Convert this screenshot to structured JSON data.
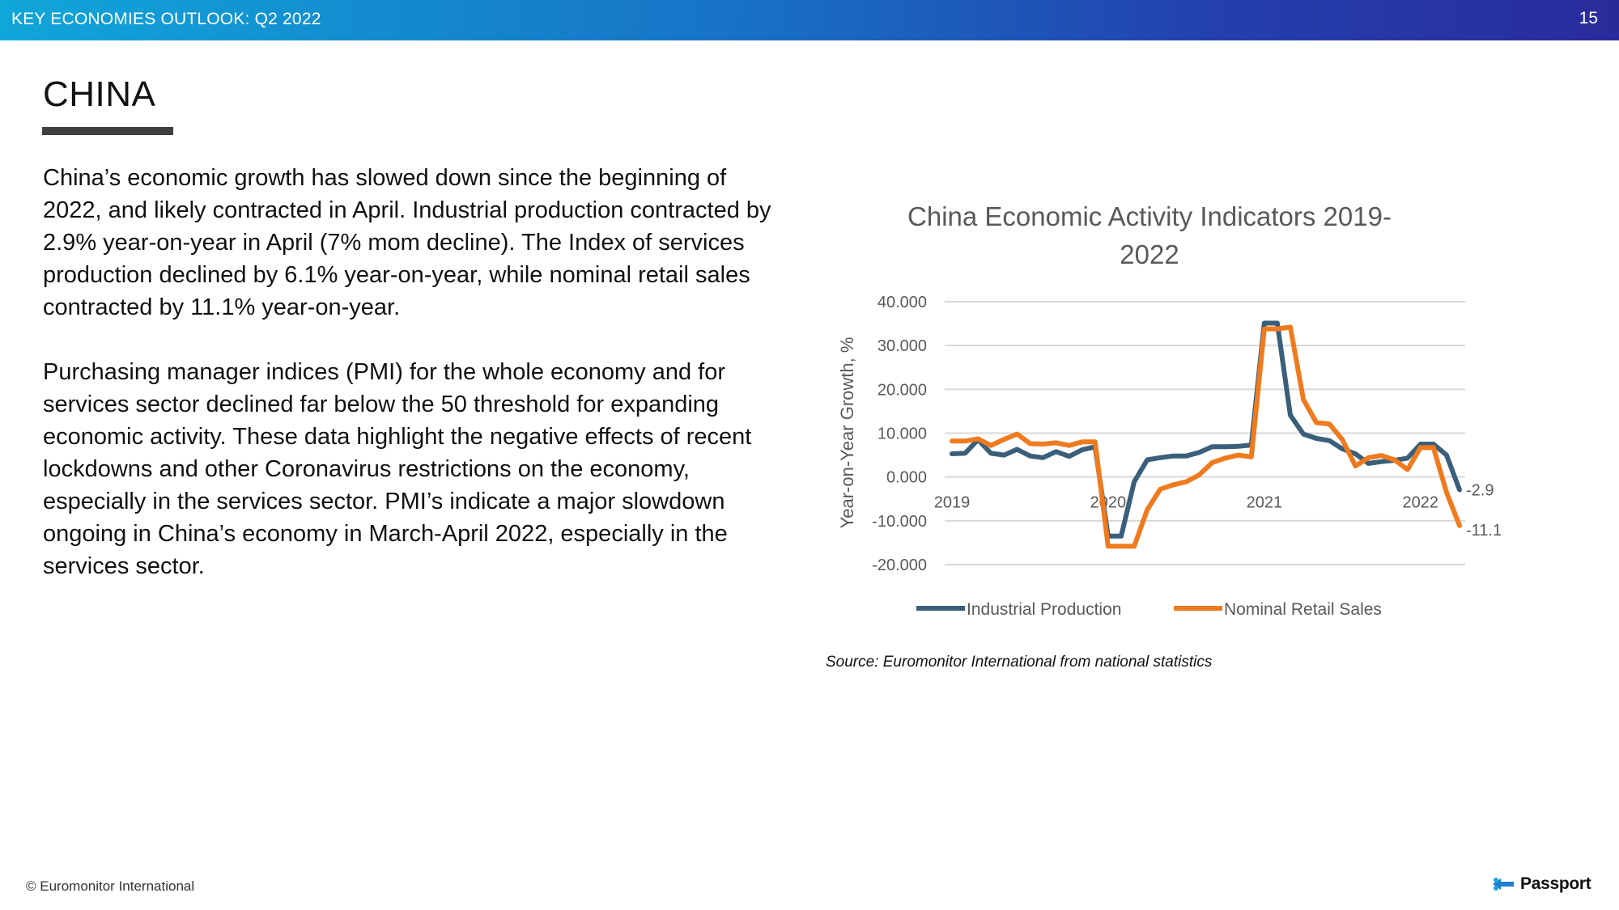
{
  "header": {
    "title": "KEY ECONOMIES OUTLOOK: Q2 2022",
    "page_number": "15"
  },
  "section": {
    "title": "CHINA"
  },
  "body": {
    "paragraphs": [
      "China’s economic  growth has slowed down since the beginning of 2022, and likely contracted in April. Industrial production contracted by 2.9% year-on-year in April (7% mom decline). The Index of services production declined by 6.1% year-on-year, while nominal retail sales contracted by 11.1% year-on-year.",
      "Purchasing manager indices (PMI) for the whole economy and for services sector declined far below the 50 threshold for expanding economic activity. These data highlight the negative effects of recent lockdowns and other Coronavirus restrictions on the economy, especially in the services sector. PMI’s indicate a major slowdown ongoing in China’s economy in March-April 2022, especially in the services sector."
    ]
  },
  "chart_data": {
    "type": "line",
    "title": "China Economic Activity Indicators 2019-2022",
    "xlabel": "",
    "ylabel": "Year-on-Year Growth, %",
    "ylim": [
      -20,
      40
    ],
    "yticks": [
      -20,
      -10,
      0,
      10,
      20,
      30,
      40
    ],
    "ytick_labels": [
      "-20.000",
      "-10.000",
      "0.000",
      "10.000",
      "20.000",
      "30.000",
      "40.000"
    ],
    "x_labels": [
      {
        "label": "2019",
        "index": 0
      },
      {
        "label": "2020",
        "index": 12
      },
      {
        "label": "2021",
        "index": 24
      },
      {
        "label": "2022",
        "index": 36
      }
    ],
    "grid": true,
    "legend_position": "bottom",
    "series": [
      {
        "name": "Industrial Production",
        "color": "#3a5f7a",
        "values": [
          5.3,
          5.4,
          8.5,
          5.4,
          5.0,
          6.3,
          4.8,
          4.4,
          5.8,
          4.7,
          6.2,
          6.9,
          -13.5,
          -13.5,
          -1.1,
          3.9,
          4.4,
          4.8,
          4.8,
          5.6,
          6.9,
          6.9,
          7.0,
          7.3,
          35.1,
          35.1,
          14.1,
          9.8,
          8.8,
          8.3,
          6.4,
          5.3,
          3.1,
          3.5,
          3.8,
          4.3,
          7.5,
          7.5,
          5.0,
          -2.9
        ],
        "end_label": "-2.9"
      },
      {
        "name": "Nominal Retail Sales",
        "color": "#f07a1e",
        "values": [
          8.2,
          8.2,
          8.7,
          7.2,
          8.6,
          9.8,
          7.6,
          7.5,
          7.8,
          7.2,
          8.0,
          8.0,
          -15.8,
          -15.8,
          -15.8,
          -7.5,
          -2.8,
          -1.8,
          -1.1,
          0.5,
          3.3,
          4.3,
          5.0,
          4.6,
          33.8,
          33.8,
          34.2,
          17.7,
          12.4,
          12.1,
          8.5,
          2.5,
          4.4,
          4.9,
          3.9,
          1.7,
          6.7,
          6.7,
          -3.5,
          -11.1
        ],
        "end_label": "-11.1"
      }
    ]
  },
  "source": "Source: Euromonitor International from national statistics",
  "footer": {
    "copyright": "© Euromonitor International",
    "brand": "Passport"
  },
  "colors": {
    "grid": "#d9d9d9",
    "axis_text": "#595959",
    "title_text": "#595959"
  }
}
